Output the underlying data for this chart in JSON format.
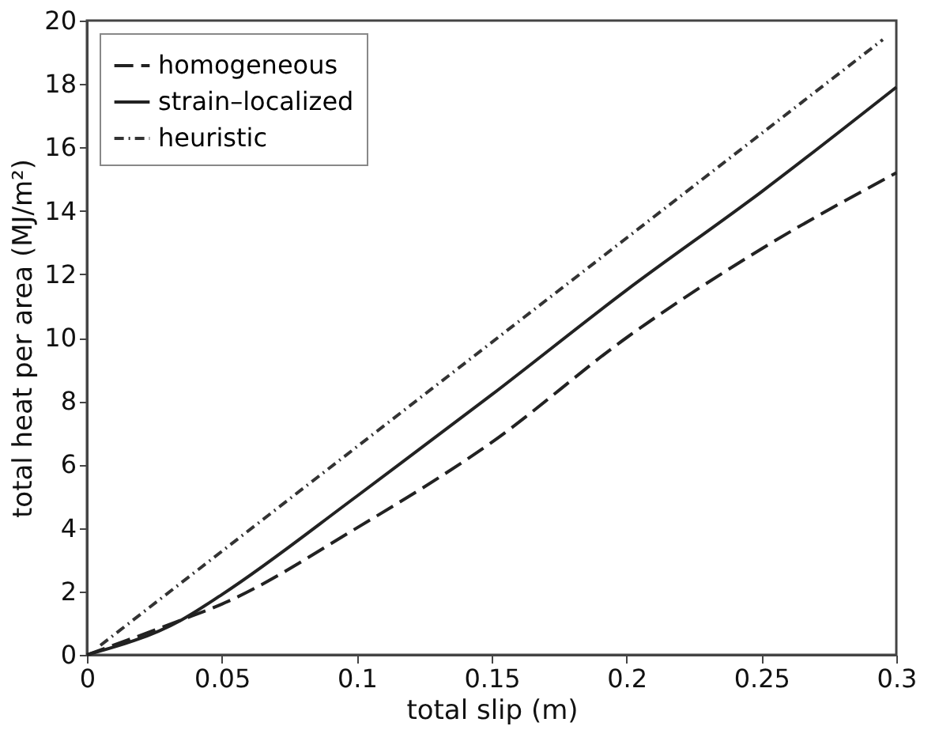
{
  "chart_data": {
    "type": "line",
    "xlabel": "total slip (m)",
    "ylabel": "total heat per area (MJ/m²)",
    "xlim": [
      0,
      0.3
    ],
    "ylim": [
      0,
      20
    ],
    "xticks": [
      0,
      0.05,
      0.1,
      0.15,
      0.2,
      0.25,
      0.3
    ],
    "yticks": [
      0,
      2,
      4,
      6,
      8,
      10,
      12,
      14,
      16,
      18,
      20
    ],
    "grid": false,
    "legend": "top left",
    "series": [
      {
        "name": "homogeneous",
        "color": "#222222",
        "line_style": "dashed",
        "x": [
          0,
          0.035,
          0.05,
          0.1,
          0.15,
          0.2,
          0.25,
          0.3
        ],
        "values": [
          0,
          1.1,
          1.6,
          4.0,
          6.7,
          10.0,
          12.8,
          15.2
        ]
      },
      {
        "name": "strain–localized",
        "color": "#222222",
        "line_style": "solid",
        "x": [
          0,
          0.035,
          0.05,
          0.1,
          0.15,
          0.2,
          0.25,
          0.3
        ],
        "values": [
          0,
          1.1,
          1.9,
          5.0,
          8.2,
          11.5,
          14.6,
          17.9
        ]
      },
      {
        "name": "heuristic",
        "color": "#333333",
        "line_style": "dotted",
        "x": [
          0.005,
          0.295
        ],
        "values": [
          0.3,
          19.4
        ]
      }
    ]
  }
}
